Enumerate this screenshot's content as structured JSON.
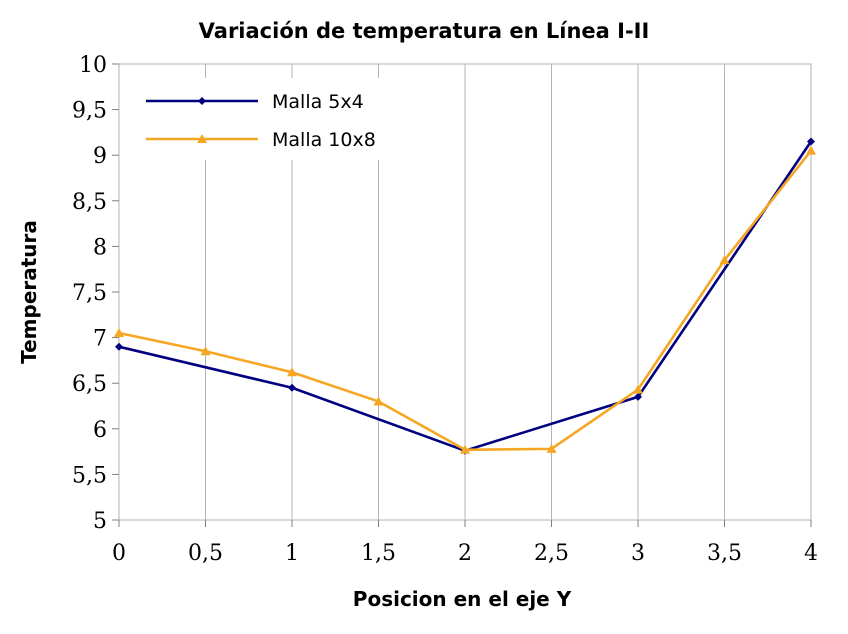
{
  "chart_data": {
    "type": "line",
    "title": "Variación de temperatura en Línea I-II",
    "xlabel": "Posicion en el eje Y",
    "ylabel": "Temperatura",
    "xlim": [
      0,
      4
    ],
    "ylim": [
      5,
      10
    ],
    "x_ticks": [
      "0",
      "0,5",
      "1",
      "1,5",
      "2",
      "2,5",
      "3",
      "3,5",
      "4"
    ],
    "y_ticks": [
      "5",
      "5,5",
      "6",
      "6,5",
      "7",
      "7,5",
      "8",
      "8,5",
      "9",
      "9,5",
      "10"
    ],
    "grid": "vertical",
    "legend_position": "top-left",
    "series": [
      {
        "name": "Malla 5x4",
        "color": "#000080",
        "marker": "diamond",
        "x": [
          0,
          1,
          2,
          3,
          4
        ],
        "y": [
          6.9,
          6.45,
          5.76,
          6.35,
          9.15
        ]
      },
      {
        "name": "Malla 10x8",
        "color": "#f5a623",
        "marker": "triangle",
        "x": [
          0,
          0.5,
          1,
          1.5,
          2,
          2.5,
          3,
          3.5,
          4
        ],
        "y": [
          7.05,
          6.85,
          6.62,
          6.3,
          5.77,
          5.78,
          6.43,
          7.85,
          9.05
        ]
      }
    ]
  }
}
